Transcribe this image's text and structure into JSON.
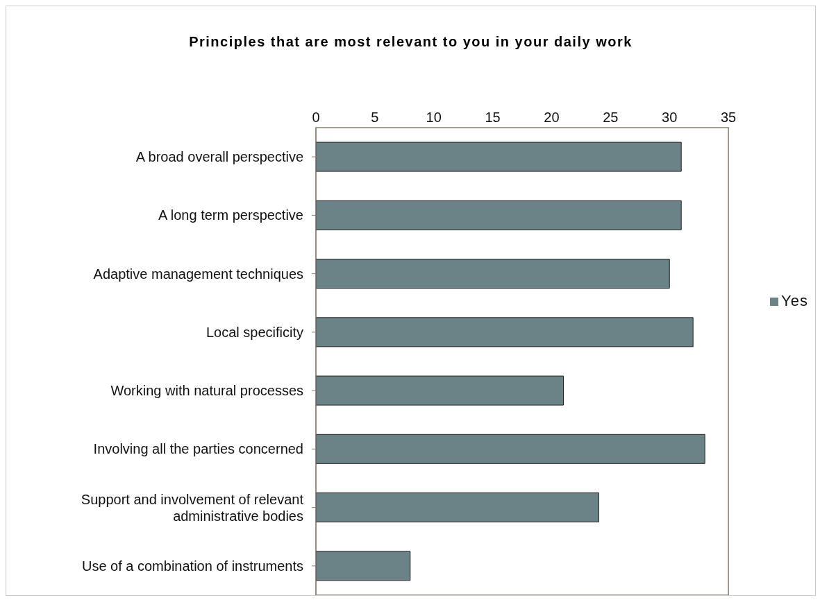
{
  "chart_data": {
    "type": "bar",
    "orientation": "horizontal",
    "title": "Principles that are most relevant to you in your daily work",
    "categories": [
      "A broad overall perspective",
      "A long term perspective",
      "Adaptive management techniques",
      "Local specificity",
      "Working with natural processes",
      "Involving all the parties concerned",
      "Support and involvement of relevant administrative bodies",
      "Use of a combination of instruments"
    ],
    "series": [
      {
        "name": "Yes",
        "color": "#6b8286",
        "values": [
          31,
          31,
          30,
          32,
          21,
          33,
          24,
          8
        ]
      }
    ],
    "xlim": [
      0,
      35
    ],
    "xticks": [
      0,
      5,
      10,
      15,
      20,
      25,
      30,
      35
    ],
    "legend": "right"
  }
}
